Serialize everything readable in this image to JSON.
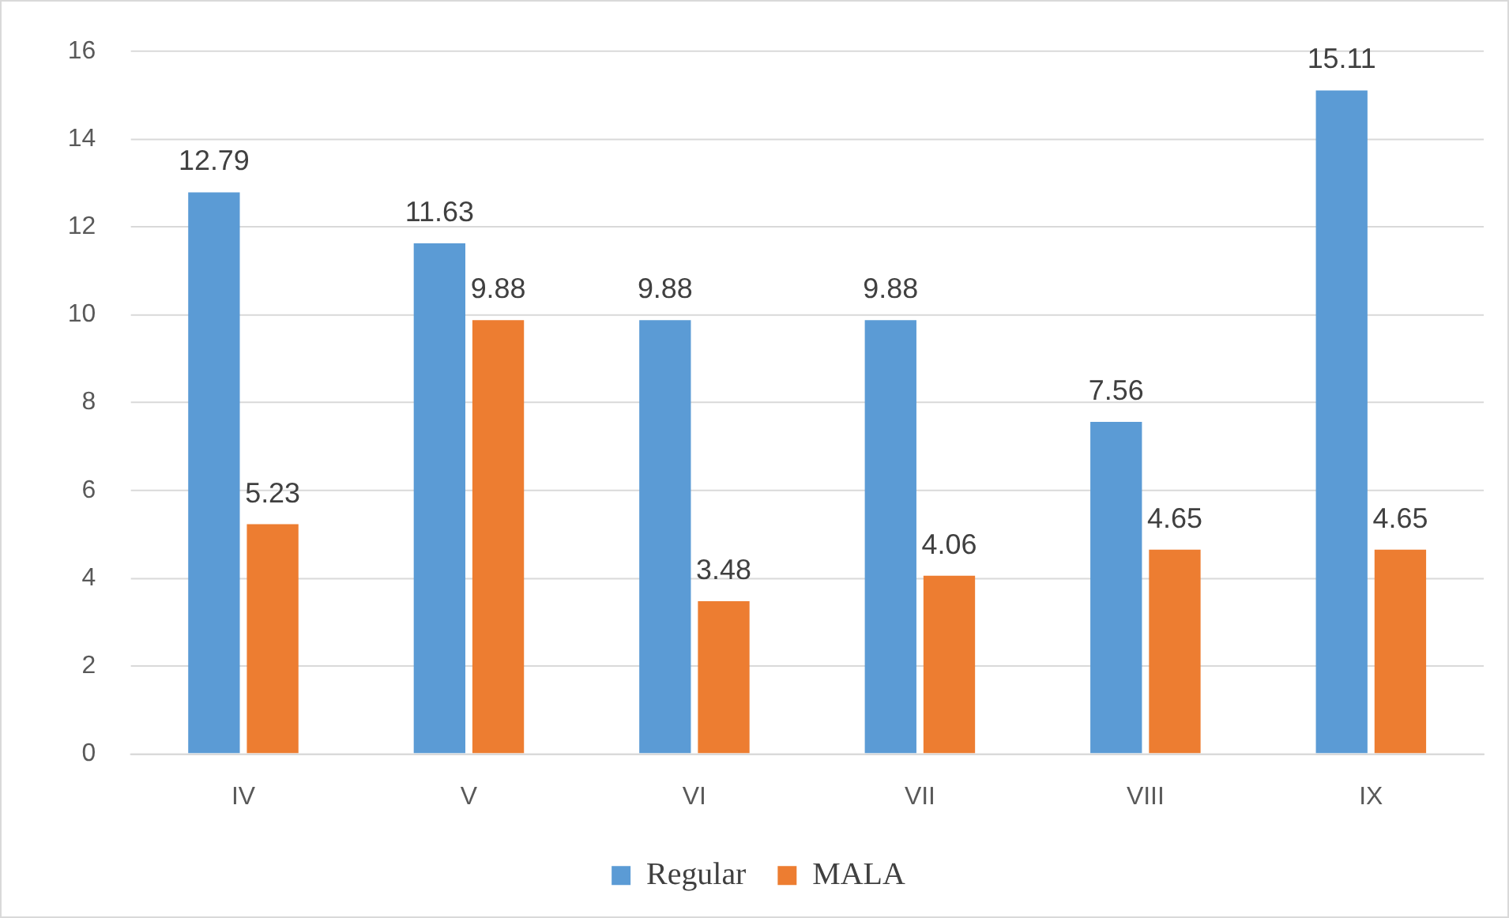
{
  "chart_data": {
    "type": "bar",
    "categories": [
      "IV",
      "V",
      "VI",
      "VII",
      "VIII",
      "IX"
    ],
    "series": [
      {
        "name": "Regular",
        "color": "#5b9bd5",
        "values": [
          12.79,
          11.63,
          9.88,
          9.88,
          7.56,
          15.11
        ]
      },
      {
        "name": "MALA",
        "color": "#ed7d31",
        "values": [
          5.23,
          9.88,
          3.48,
          4.06,
          4.65,
          4.65
        ]
      }
    ],
    "ylim": [
      0,
      16
    ],
    "yticks": [
      0,
      2,
      4,
      6,
      8,
      10,
      12,
      14,
      16
    ],
    "grid": "y",
    "legend": "bottom",
    "data_labels": true
  }
}
